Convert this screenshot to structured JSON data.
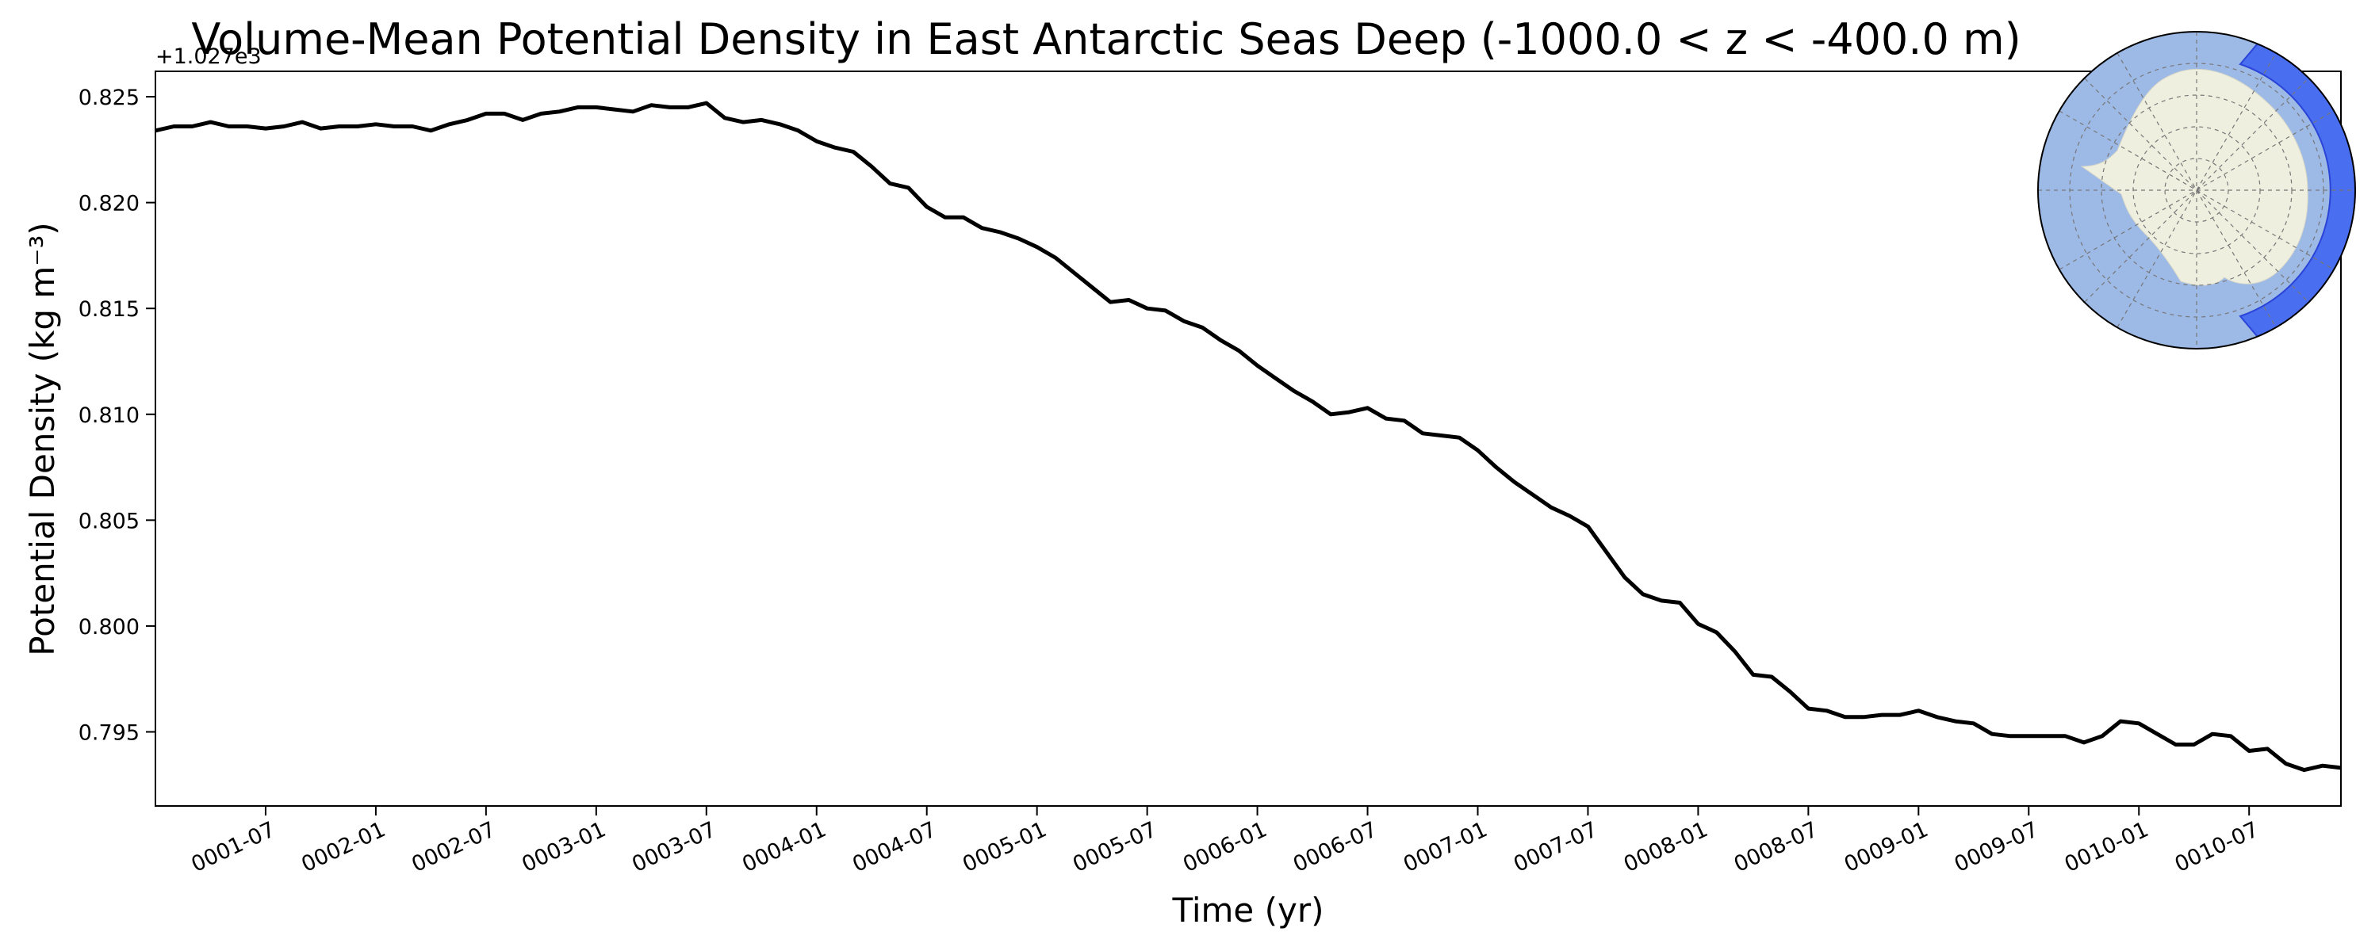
{
  "chart_data": {
    "type": "line",
    "title": "Volume-Mean Potential Density in East Antarctic Seas Deep (-1000.0 < z < -400.0 m)",
    "xlabel": "Time (yr)",
    "ylabel": "Potential Density (kg m⁻³)",
    "y_offset_label": "+1.027e3",
    "ylim": [
      0.7915,
      0.8262
    ],
    "xlim": [
      "0001-01",
      "0010-12"
    ],
    "grid": false,
    "inset_map": "south-polar-stereographic-east-antarctic-region",
    "x_tick_labels": [
      "0001-07",
      "0002-01",
      "0002-07",
      "0003-01",
      "0003-07",
      "0004-01",
      "0004-07",
      "0005-01",
      "0005-07",
      "0006-01",
      "0006-07",
      "0007-01",
      "0007-07",
      "0008-01",
      "0008-07",
      "0009-01",
      "0009-07",
      "0010-01",
      "0010-07"
    ],
    "y_tick_labels": [
      "0.795",
      "0.800",
      "0.805",
      "0.810",
      "0.815",
      "0.820",
      "0.825"
    ],
    "series": [
      {
        "color": "#000000",
        "x": [
          "0001-01",
          "0001-02",
          "0001-03",
          "0001-04",
          "0001-05",
          "0001-06",
          "0001-07",
          "0001-08",
          "0001-09",
          "0001-10",
          "0001-11",
          "0001-12",
          "0002-01",
          "0002-02",
          "0002-03",
          "0002-04",
          "0002-05",
          "0002-06",
          "0002-07",
          "0002-08",
          "0002-09",
          "0002-10",
          "0002-11",
          "0002-12",
          "0003-01",
          "0003-02",
          "0003-03",
          "0003-04",
          "0003-05",
          "0003-06",
          "0003-07",
          "0003-08",
          "0003-09",
          "0003-10",
          "0003-11",
          "0003-12",
          "0004-01",
          "0004-02",
          "0004-03",
          "0004-04",
          "0004-05",
          "0004-06",
          "0004-07",
          "0004-08",
          "0004-09",
          "0004-10",
          "0004-11",
          "0004-12",
          "0005-01",
          "0005-02",
          "0005-03",
          "0005-04",
          "0005-05",
          "0005-06",
          "0005-07",
          "0005-08",
          "0005-09",
          "0005-10",
          "0005-11",
          "0005-12",
          "0006-01",
          "0006-02",
          "0006-03",
          "0006-04",
          "0006-05",
          "0006-06",
          "0006-07",
          "0006-08",
          "0006-09",
          "0006-10",
          "0006-11",
          "0006-12",
          "0007-01",
          "0007-02",
          "0007-03",
          "0007-04",
          "0007-05",
          "0007-06",
          "0007-07",
          "0007-08",
          "0007-09",
          "0007-10",
          "0007-11",
          "0007-12",
          "0008-01",
          "0008-02",
          "0008-03",
          "0008-04",
          "0008-05",
          "0008-06",
          "0008-07",
          "0008-08",
          "0008-09",
          "0008-10",
          "0008-11",
          "0008-12",
          "0009-01",
          "0009-02",
          "0009-03",
          "0009-04",
          "0009-05",
          "0009-06",
          "0009-07",
          "0009-08",
          "0009-09",
          "0009-10",
          "0009-11",
          "0009-12",
          "0010-01",
          "0010-02",
          "0010-03",
          "0010-04",
          "0010-05",
          "0010-06",
          "0010-07",
          "0010-08",
          "0010-09",
          "0010-10",
          "0010-11",
          "0010-12"
        ],
        "values": [
          0.8234,
          0.8236,
          0.8236,
          0.8238,
          0.8236,
          0.8236,
          0.8235,
          0.8236,
          0.8238,
          0.8235,
          0.8236,
          0.8236,
          0.8237,
          0.8236,
          0.8236,
          0.8234,
          0.8237,
          0.8239,
          0.8242,
          0.8242,
          0.8239,
          0.8242,
          0.8243,
          0.8245,
          0.8245,
          0.8244,
          0.8243,
          0.8246,
          0.8245,
          0.8245,
          0.8247,
          0.824,
          0.8238,
          0.8239,
          0.8237,
          0.8234,
          0.8229,
          0.8226,
          0.8224,
          0.8217,
          0.8209,
          0.8207,
          0.8198,
          0.8193,
          0.8193,
          0.8188,
          0.8186,
          0.8183,
          0.8179,
          0.8174,
          0.8167,
          0.816,
          0.8153,
          0.8154,
          0.815,
          0.8149,
          0.8144,
          0.8141,
          0.8135,
          0.813,
          0.8123,
          0.8117,
          0.8111,
          0.8106,
          0.81,
          0.8101,
          0.8103,
          0.8098,
          0.8097,
          0.8091,
          0.809,
          0.8089,
          0.8083,
          0.8075,
          0.8068,
          0.8062,
          0.8056,
          0.8052,
          0.8047,
          0.8035,
          0.8023,
          0.8015,
          0.8012,
          0.8011,
          0.8001,
          0.7997,
          0.7988,
          0.7977,
          0.7976,
          0.7969,
          0.7961,
          0.796,
          0.7957,
          0.7957,
          0.7958,
          0.7958,
          0.796,
          0.7957,
          0.7955,
          0.7954,
          0.7949,
          0.7948,
          0.7948,
          0.7948,
          0.7948,
          0.7945,
          0.7948,
          0.7955,
          0.7954,
          0.7949,
          0.7944,
          0.7944,
          0.7949,
          0.7948,
          0.7941,
          0.7942,
          0.7935,
          0.7932,
          0.7934,
          0.7933
        ]
      }
    ]
  }
}
